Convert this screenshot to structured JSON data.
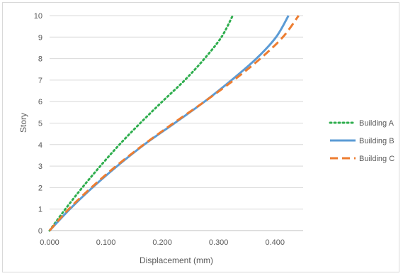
{
  "chart_data": {
    "type": "line",
    "title": "",
    "xlabel": "Displacement (mm)",
    "ylabel": "Story",
    "xlim": [
      0,
      0.45
    ],
    "ylim": [
      0,
      10
    ],
    "x_ticks": [
      "0.000",
      "0.100",
      "0.200",
      "0.300",
      "0.400"
    ],
    "y_ticks": [
      "0",
      "1",
      "2",
      "3",
      "4",
      "5",
      "6",
      "7",
      "8",
      "9",
      "10"
    ],
    "grid": "horizontal",
    "legend_position": "right",
    "series": [
      {
        "name": "Building A",
        "color": "#2fae4e",
        "style": "dotted",
        "points": [
          [
            0.0,
            0
          ],
          [
            0.028,
            1
          ],
          [
            0.058,
            2
          ],
          [
            0.09,
            3
          ],
          [
            0.124,
            4
          ],
          [
            0.161,
            5
          ],
          [
            0.2,
            6
          ],
          [
            0.24,
            7
          ],
          [
            0.275,
            8
          ],
          [
            0.305,
            9
          ],
          [
            0.325,
            10
          ]
        ]
      },
      {
        "name": "Building B",
        "color": "#5b9bd5",
        "style": "solid",
        "points": [
          [
            0.0,
            0
          ],
          [
            0.036,
            1
          ],
          [
            0.076,
            2
          ],
          [
            0.12,
            3
          ],
          [
            0.168,
            4
          ],
          [
            0.222,
            5
          ],
          [
            0.275,
            6
          ],
          [
            0.323,
            7
          ],
          [
            0.367,
            8
          ],
          [
            0.402,
            9
          ],
          [
            0.424,
            10
          ]
        ]
      },
      {
        "name": "Building C",
        "color": "#ed7d31",
        "style": "dashed",
        "points": [
          [
            0.0,
            0
          ],
          [
            0.034,
            1
          ],
          [
            0.074,
            2
          ],
          [
            0.118,
            3
          ],
          [
            0.167,
            4
          ],
          [
            0.22,
            5
          ],
          [
            0.275,
            6
          ],
          [
            0.327,
            7
          ],
          [
            0.374,
            8
          ],
          [
            0.414,
            9
          ],
          [
            0.442,
            10
          ]
        ]
      }
    ]
  }
}
